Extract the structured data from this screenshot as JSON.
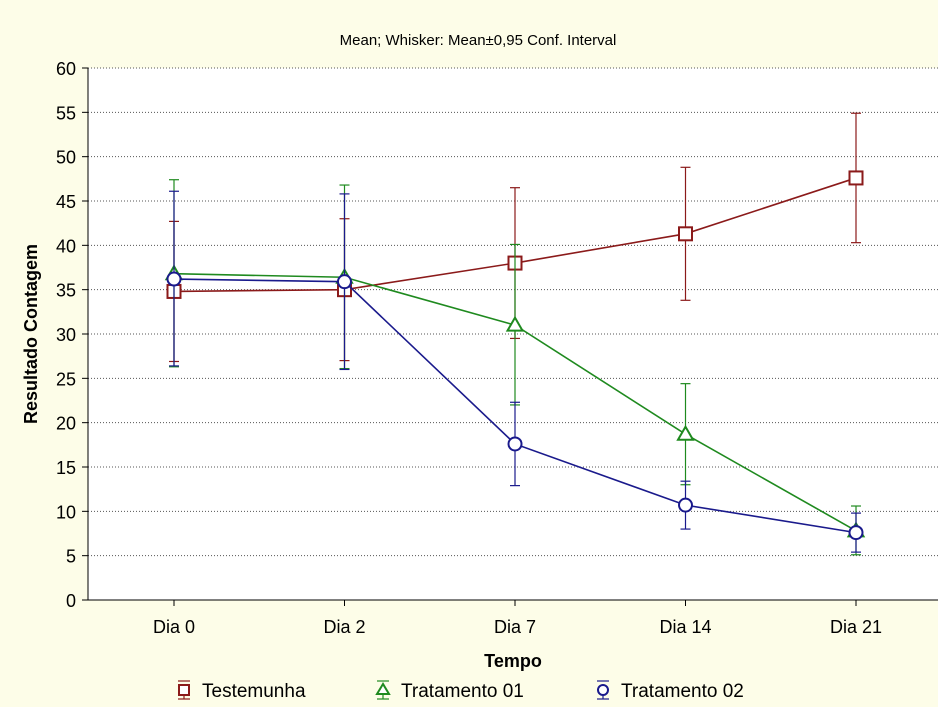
{
  "chart_data": {
    "type": "line",
    "title": "Mean; Whisker: Mean±0,95 Conf. Interval",
    "xlabel": "Tempo",
    "ylabel": "Resultado Contagem",
    "categories": [
      "Dia 0",
      "Dia 2",
      "Dia 7",
      "Dia 14",
      "Dia 21"
    ],
    "ylim": [
      0,
      60
    ],
    "yticks": [
      "0",
      "5",
      "10",
      "15",
      "20",
      "25",
      "30",
      "35",
      "40",
      "45",
      "50",
      "55",
      "60"
    ],
    "grid": "horizontal dotted",
    "legend_position": "bottom",
    "series": [
      {
        "name": "Testemunha",
        "marker": "square",
        "color": "#8b1a1a",
        "values": [
          34.8,
          35.0,
          38.0,
          41.3,
          47.6
        ],
        "lower": [
          26.9,
          27.0,
          29.5,
          33.8,
          40.3
        ],
        "upper": [
          42.7,
          43.0,
          46.5,
          48.8,
          54.9
        ]
      },
      {
        "name": "Tratamento 01",
        "marker": "triangle",
        "color": "#1f8a1f",
        "values": [
          36.8,
          36.4,
          31.0,
          18.7,
          7.8
        ],
        "lower": [
          26.3,
          26.1,
          22.0,
          13.0,
          5.1
        ],
        "upper": [
          47.4,
          46.8,
          40.1,
          24.4,
          10.6
        ]
      },
      {
        "name": "Tratamento 02",
        "marker": "circle",
        "color": "#1a1a8c",
        "values": [
          36.2,
          35.9,
          17.6,
          10.7,
          7.6
        ],
        "lower": [
          26.4,
          26.0,
          12.9,
          8.0,
          5.4
        ],
        "upper": [
          46.1,
          45.8,
          22.3,
          13.4,
          9.8
        ]
      }
    ]
  }
}
